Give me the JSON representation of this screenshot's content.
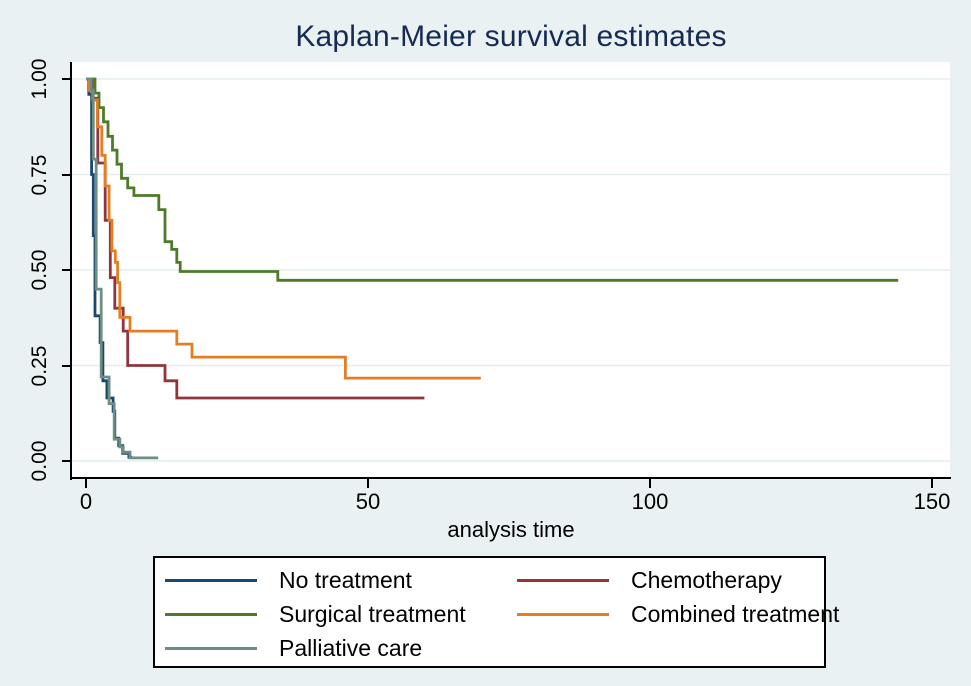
{
  "title": "Kaplan-Meier survival estimates",
  "colors": {
    "background": "#eaf1f3",
    "plot_background": "#ffffff",
    "gridline": "#e4eef1",
    "axis": "#000000",
    "title_text": "#162a52",
    "legend_border": "#000000"
  },
  "chart_data": {
    "type": "line",
    "subtype": "kaplan-meier-step",
    "title": "Kaplan-Meier survival estimates",
    "xlabel": "analysis time",
    "ylabel": "",
    "xlim": [
      0,
      153
    ],
    "ylim": [
      0.0,
      1.0
    ],
    "xticks": [
      "0",
      "50",
      "100",
      "150"
    ],
    "xtick_values": [
      0,
      50,
      100,
      150
    ],
    "yticks": [
      "0.00",
      "0.25",
      "0.50",
      "0.75",
      "1.00"
    ],
    "ytick_values": [
      0.0,
      0.25,
      0.5,
      0.75,
      1.0
    ],
    "grid": "horizontal",
    "legend_position": "below",
    "legend_columns": 2,
    "series": [
      {
        "name": "No treatment",
        "color": "#1a476f",
        "end_time": 8.2,
        "points": [
          [
            0,
            1.0
          ],
          [
            0.5,
            0.96
          ],
          [
            1.0,
            0.75
          ],
          [
            1.3,
            0.59
          ],
          [
            1.6,
            0.38
          ],
          [
            2.5,
            0.31
          ],
          [
            3.0,
            0.21
          ],
          [
            3.7,
            0.165
          ],
          [
            4.8,
            0.13
          ],
          [
            5.1,
            0.06
          ],
          [
            5.8,
            0.04
          ],
          [
            6.5,
            0.02
          ],
          [
            7.6,
            0.01
          ]
        ]
      },
      {
        "name": "Chemotherapy",
        "color": "#90353b",
        "end_time": 60,
        "points": [
          [
            0,
            1.0
          ],
          [
            1.1,
            0.95
          ],
          [
            2.1,
            0.78
          ],
          [
            3.4,
            0.63
          ],
          [
            4.3,
            0.48
          ],
          [
            5.1,
            0.4
          ],
          [
            6.6,
            0.34
          ],
          [
            7.4,
            0.25
          ],
          [
            14,
            0.21
          ],
          [
            16.1,
            0.165
          ]
        ]
      },
      {
        "name": "Surgical treatment",
        "color": "#4f7b28",
        "end_time": 144,
        "points": [
          [
            0,
            1.0
          ],
          [
            1.6,
            0.963
          ],
          [
            2.3,
            0.925
          ],
          [
            3.1,
            0.888
          ],
          [
            3.9,
            0.85
          ],
          [
            4.7,
            0.814
          ],
          [
            5.5,
            0.777
          ],
          [
            6.3,
            0.74
          ],
          [
            7.4,
            0.715
          ],
          [
            8.5,
            0.695
          ],
          [
            12.9,
            0.658
          ],
          [
            14,
            0.574
          ],
          [
            15.2,
            0.554
          ],
          [
            16.1,
            0.52
          ],
          [
            16.7,
            0.496
          ],
          [
            34,
            0.473
          ]
        ]
      },
      {
        "name": "Combined treatment",
        "color": "#e37e23",
        "end_time": 70,
        "points": [
          [
            0,
            1.0
          ],
          [
            0.6,
            0.97
          ],
          [
            1.2,
            0.945
          ],
          [
            2.0,
            0.875
          ],
          [
            2.8,
            0.8
          ],
          [
            3.4,
            0.72
          ],
          [
            4.1,
            0.63
          ],
          [
            4.6,
            0.55
          ],
          [
            5.2,
            0.52
          ],
          [
            5.6,
            0.467
          ],
          [
            6.0,
            0.376
          ],
          [
            7.8,
            0.34
          ],
          [
            16.1,
            0.306
          ],
          [
            18.8,
            0.272
          ],
          [
            46,
            0.217
          ]
        ]
      },
      {
        "name": "Palliative care",
        "color": "#6e8e84",
        "end_time": 12.8,
        "points": [
          [
            0,
            1.0
          ],
          [
            0.9,
            0.97
          ],
          [
            1.3,
            0.79
          ],
          [
            1.8,
            0.45
          ],
          [
            2.7,
            0.22
          ],
          [
            4.1,
            0.15
          ],
          [
            5.0,
            0.057
          ],
          [
            6.0,
            0.037
          ],
          [
            6.6,
            0.023
          ],
          [
            7.8,
            0.008
          ]
        ]
      }
    ]
  }
}
